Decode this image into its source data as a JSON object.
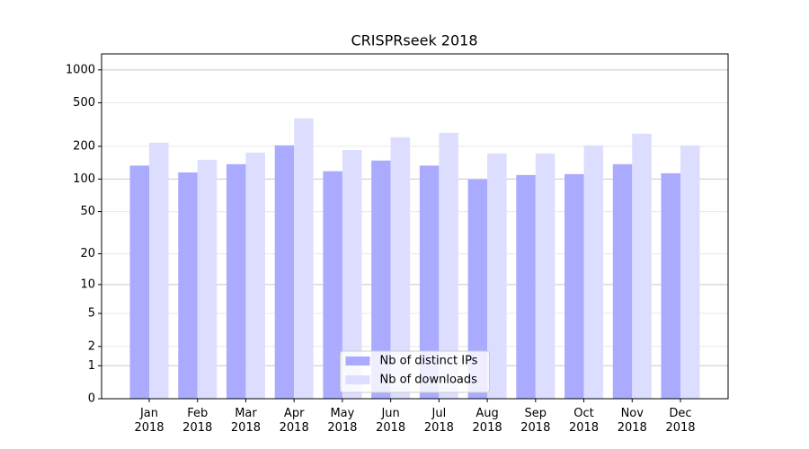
{
  "chart_data": {
    "type": "bar",
    "title": "CRISPRseek 2018",
    "categories": [
      "Jan\n2018",
      "Feb\n2018",
      "Mar\n2018",
      "Apr\n2018",
      "May\n2018",
      "Jun\n2018",
      "Jul\n2018",
      "Aug\n2018",
      "Sep\n2018",
      "Oct\n2018",
      "Nov\n2018",
      "Dec\n2018"
    ],
    "series": [
      {
        "name": "Nb of distinct IPs",
        "color": "#aaaaff",
        "values": [
          133,
          115,
          137,
          204,
          118,
          148,
          133,
          99,
          109,
          111,
          137,
          113
        ]
      },
      {
        "name": "Nb of downloads",
        "color": "#ddddff",
        "values": [
          216,
          150,
          175,
          360,
          185,
          242,
          266,
          172,
          172,
          204,
          261,
          204
        ]
      }
    ],
    "yscale": "log1p",
    "ylim": [
      0,
      1400
    ],
    "yticks": [
      0,
      1,
      2,
      5,
      10,
      20,
      50,
      100,
      200,
      500,
      1000
    ],
    "grid": true,
    "legend": "lower center"
  }
}
